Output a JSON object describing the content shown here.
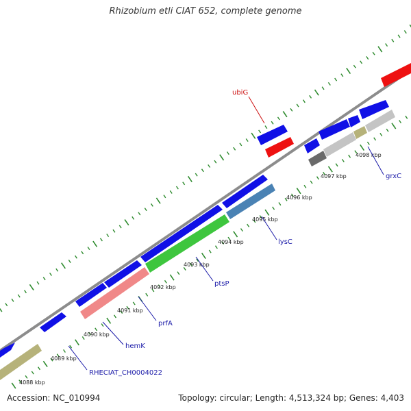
{
  "title": "Rhizobium etli CIAT 652, complete genome",
  "footer": {
    "accession": "Accession: NC_010994",
    "summary": "Topology: circular; Length: 4,513,324 bp; Genes: 4,403"
  },
  "colors": {
    "backbone": "#8c8c8c",
    "tick": "#2e8b2e",
    "plus_strand_cds": "#1010e6",
    "red_feature": "#ee1111",
    "pink_feature": "#f08888",
    "green_feature": "#3ec63e",
    "steel_feature": "#4a82b4",
    "olive_feature": "#b6b27a",
    "light_gray_feature": "#c4c4c4",
    "dark_gray_feature": "#6a6a6a",
    "label_blue": "#1a1aa8",
    "label_red": "#cc1111"
  },
  "tick_labels": [
    "4088 kbp",
    "4089 kbp",
    "4090 kbp",
    "4091 kbp",
    "4092 kbp",
    "4093 kbp",
    "4094 kbp",
    "4095 kbp",
    "4096 kbp",
    "4097 kbp",
    "4098 kbp"
  ],
  "gene_labels": [
    {
      "name": "RHECIAT_CH0004022",
      "color": "label_blue"
    },
    {
      "name": "hemK",
      "color": "label_blue"
    },
    {
      "name": "prfA",
      "color": "label_blue"
    },
    {
      "name": "ptsP",
      "color": "label_blue"
    },
    {
      "name": "lysC",
      "color": "label_blue"
    },
    {
      "name": "grxC",
      "color": "label_blue"
    },
    {
      "name": "ubiG",
      "color": "label_red"
    }
  ]
}
